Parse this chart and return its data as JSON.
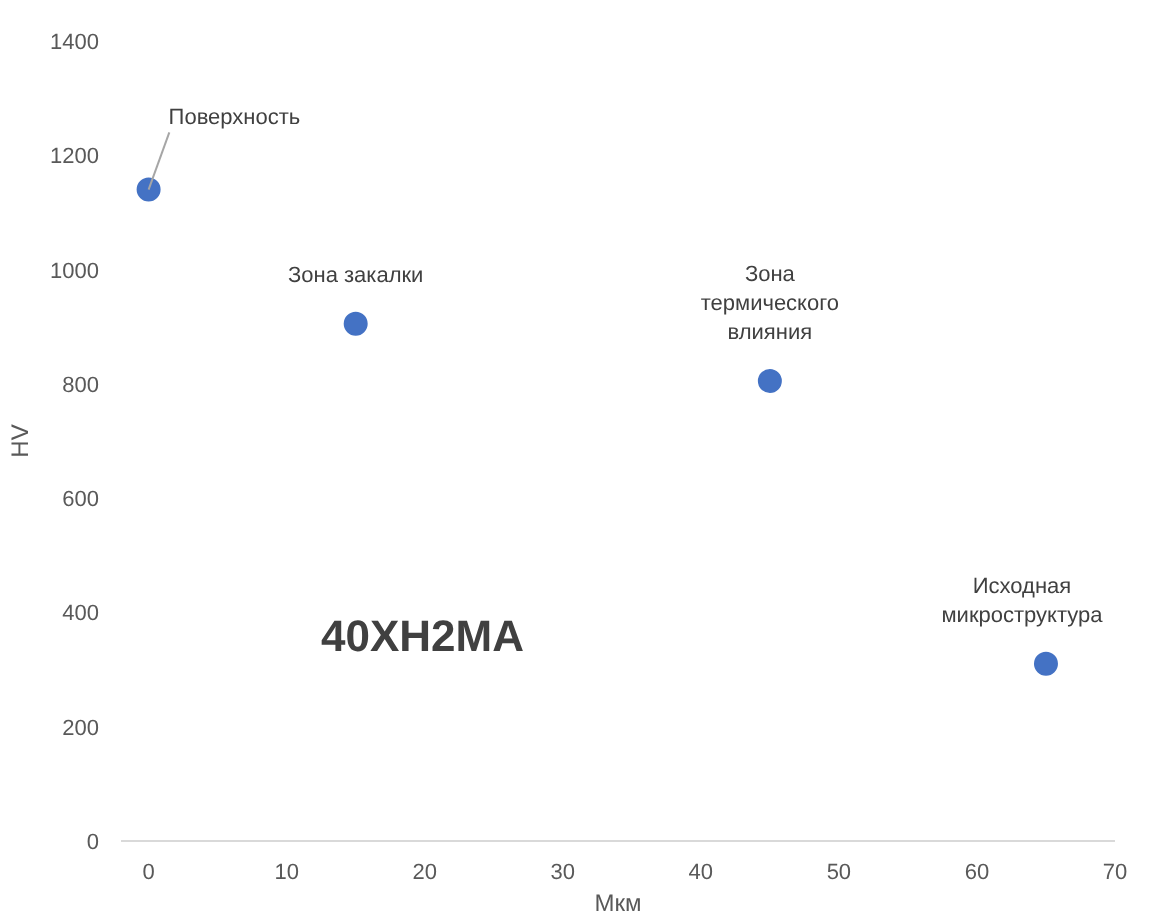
{
  "chart_data": {
    "type": "scatter",
    "xlabel": "Мкм",
    "ylabel": "HV",
    "x": [
      0,
      15,
      45,
      65
    ],
    "values": [
      1140,
      905,
      805,
      310
    ],
    "color": "#4472c4",
    "marker": "circle",
    "xlim": [
      -2,
      70
    ],
    "ylim": [
      0,
      1400
    ],
    "xticks": [
      0,
      10,
      20,
      30,
      40,
      50,
      60,
      70
    ],
    "yticks": [
      0,
      200,
      400,
      600,
      800,
      1000,
      1200,
      1400
    ],
    "grid": false,
    "annotations": [
      {
        "text": "Поверхность",
        "x": 0,
        "y": 1140
      },
      {
        "text": "Зона закалки",
        "x": 15,
        "y": 905
      },
      {
        "text": "Зона\nтермического\nвлияния",
        "x": 45,
        "y": 805
      },
      {
        "text": "Исходная\nмикроструктура",
        "x": 65,
        "y": 310
      },
      "40XH2MA"
    ]
  }
}
